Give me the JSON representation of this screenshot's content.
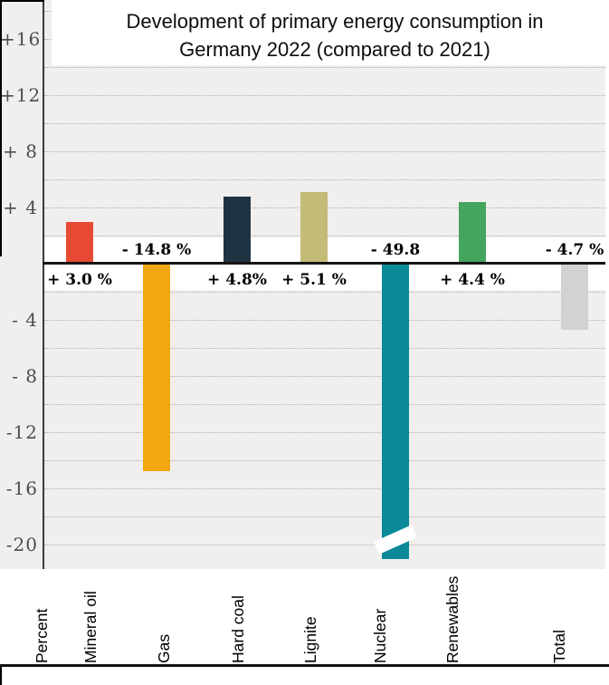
{
  "title": "Development of primary energy consumption in Germany 2022 (compared to 2021)",
  "y_axis": {
    "unit_label": "Percent",
    "tick_labels": [
      {
        "value": 16,
        "label": "+16"
      },
      {
        "value": 12,
        "label": "+12"
      },
      {
        "value": 8,
        "label": "+ 8"
      },
      {
        "value": 4,
        "label": "+ 4"
      },
      {
        "value": -4,
        "label": "- 4"
      },
      {
        "value": -8,
        "label": "- 8"
      },
      {
        "value": -12,
        "label": "-12"
      },
      {
        "value": -16,
        "label": "-16"
      },
      {
        "value": -20,
        "label": "-20"
      }
    ]
  },
  "chart_data": {
    "type": "bar",
    "title": "Development of primary energy consumption in Germany 2022 (compared to 2021)",
    "xlabel": "",
    "ylabel": "Percent",
    "ylim": [
      -21,
      19
    ],
    "grid": "horizontal dotted lines every 2 units",
    "legend_position": "none",
    "categories": [
      "Mineral oil",
      "Gas",
      "Hard coal",
      "Lignite",
      "Nuclear",
      "Renewables",
      "Total"
    ],
    "values": [
      3.0,
      -14.8,
      4.8,
      5.1,
      -49.8,
      4.4,
      -4.7
    ],
    "value_labels": [
      "+ 3.0 %",
      "- 14.8 %",
      "+ 4.8%",
      "+ 5.1 %",
      "- 49.8",
      "+ 4.4 %",
      "- 4.7 %"
    ],
    "bar_colors": [
      "#e74a34",
      "#f0a711",
      "#203343",
      "#c3bc77",
      "#0a8a99",
      "#45a45e",
      "#d2d2d2"
    ],
    "axis_break": {
      "category": "Nuclear",
      "note": "bar truncated below -20 with white diagonal break mark"
    }
  },
  "colors": {
    "plot_background": "#f0efed",
    "gridline": "#b0afae",
    "zero_line": "#141414",
    "tick_text": "#4d4d4d",
    "value_text": "#000000"
  }
}
